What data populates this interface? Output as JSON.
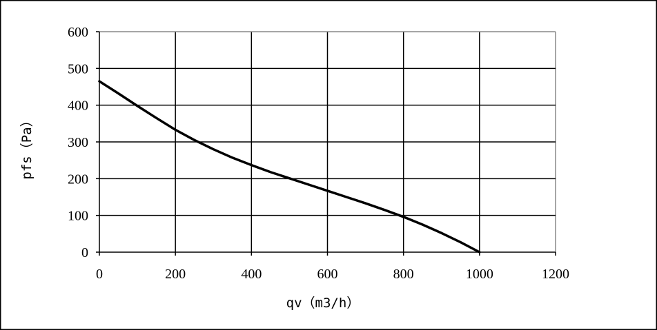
{
  "chart_data": {
    "type": "line",
    "title": "",
    "xlabel": "qv（m3/h）",
    "ylabel": "pfs（Pa）",
    "xlim": [
      0,
      1200
    ],
    "ylim": [
      0,
      600
    ],
    "x_ticks": [
      0,
      200,
      400,
      600,
      800,
      1000,
      1200
    ],
    "y_ticks": [
      0,
      100,
      200,
      300,
      400,
      500,
      600
    ],
    "x_tick_labels": [
      "0",
      "200",
      "400",
      "600",
      "800",
      "1000",
      "1200"
    ],
    "y_tick_labels": [
      "0",
      "100",
      "200",
      "300",
      "400",
      "500",
      "600"
    ],
    "grid": true,
    "legend": "none",
    "series": [
      {
        "x": [
          0,
          50,
          100,
          150,
          200,
          250,
          300,
          350,
          400,
          450,
          500,
          550,
          600,
          650,
          700,
          750,
          800,
          850,
          900,
          950,
          1000
        ],
        "y": [
          465,
          432,
          398,
          365,
          333,
          305,
          280,
          257,
          237,
          218,
          201,
          184,
          167,
          150,
          133,
          115,
          96,
          75,
          52,
          27,
          0
        ],
        "color": "#000000"
      }
    ]
  }
}
